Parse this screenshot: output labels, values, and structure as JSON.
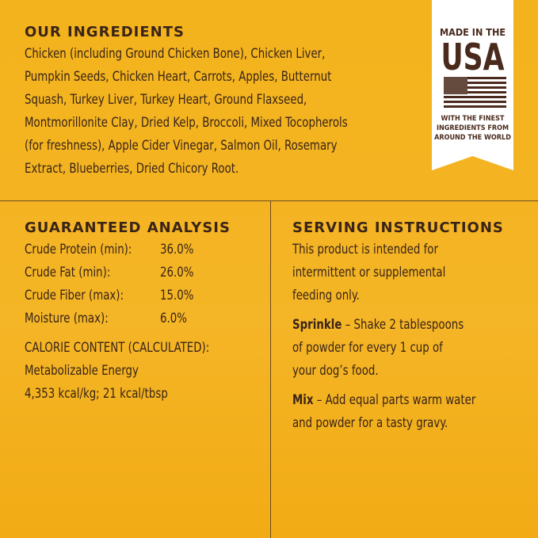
{
  "ingredients": {
    "title": "OUR INGREDIENTS",
    "lines": [
      "Chicken (including Ground Chicken Bone), Chicken Liver,",
      "Pumpkin Seeds, Chicken Heart, Carrots, Apples, Butternut",
      "Squash, Turkey Liver, Turkey Heart, Ground Flaxseed,",
      "Montmorillonite Clay, Dried Kelp, Broccoli, Mixed Tocopherols",
      "(for freshness), Apple Cider Vinegar, Salmon Oil, Rosemary",
      "Extract, Blueberries, Dried Chicory Root."
    ]
  },
  "badge": {
    "top": "MADE IN THE",
    "main": "USA",
    "bottom": [
      "WITH THE FINEST",
      "INGREDIENTS FROM",
      "AROUND THE WORLD"
    ]
  },
  "analysis": {
    "title": "GUARANTEED ANALYSIS",
    "rows": [
      {
        "label": "Crude Protein (min):",
        "value": "36.0%"
      },
      {
        "label": "Crude Fat (min):",
        "value": "26.0%"
      },
      {
        "label": "Crude Fiber (max):",
        "value": "15.0%"
      },
      {
        "label": "Moisture (max):",
        "value": "6.0%"
      }
    ],
    "calorie_title": "CALORIE CONTENT (CALCULATED):",
    "calorie_lines": [
      "Metabolizable Energy",
      "4,353 kcal/kg; 21 kcal/tbsp"
    ]
  },
  "serving": {
    "title": "SERVING INSTRUCTIONS",
    "intro": [
      "This product is intended for",
      "intermittent or supplemental",
      "feeding only."
    ],
    "sprinkle_label": "Sprinkle",
    "sprinkle_lines": [
      " – Shake 2 tablespoons",
      "of powder for every 1 cup of",
      "your dog’s food."
    ],
    "mix_label": "Mix",
    "mix_lines": [
      " – Add equal parts warm water",
      "and powder for a tasty gravy."
    ]
  },
  "colors": {
    "background": "#f3b31c",
    "text": "#3a2418",
    "badge": "#ffffff"
  }
}
